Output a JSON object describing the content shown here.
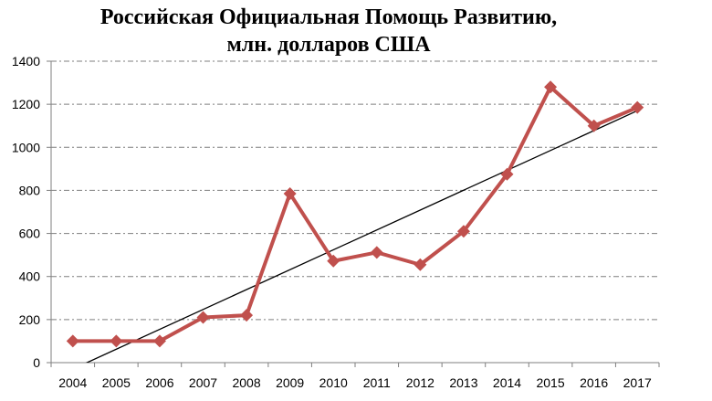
{
  "chart_data": {
    "type": "line",
    "title_lines": [
      "Российская Официальная Помощь Развитию,",
      "млн. долларов США"
    ],
    "xlabel": "",
    "ylabel": "",
    "categories": [
      "2004",
      "2005",
      "2006",
      "2007",
      "2008",
      "2009",
      "2010",
      "2011",
      "2012",
      "2013",
      "2014",
      "2015",
      "2016",
      "2017"
    ],
    "series": [
      {
        "values": [
          100,
          100,
          100,
          210,
          220,
          785,
          472,
          512,
          455,
          610,
          875,
          1280,
          1100,
          1185
        ],
        "color": "#c0504d"
      }
    ],
    "trendline": {
      "color": "#000000",
      "start": -30,
      "end": 1170
    },
    "ylim": [
      0,
      1400
    ],
    "yticks": [
      0,
      200,
      400,
      600,
      800,
      1000,
      1200,
      1400
    ],
    "grid": true,
    "legend": "none"
  }
}
